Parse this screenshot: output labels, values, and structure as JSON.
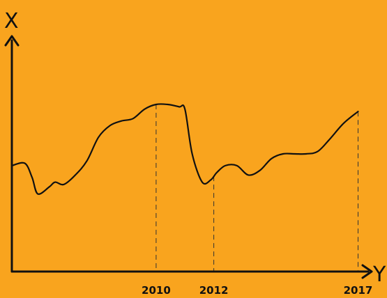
{
  "chart_data": {
    "type": "line",
    "title": "",
    "xlabel": "Y",
    "ylabel": "X",
    "xlim": [
      2005,
      2017.4
    ],
    "ylim": [
      0,
      100
    ],
    "grid": false,
    "tick_labels": [
      "2010",
      "2012",
      "2017"
    ],
    "ticks": [
      2010,
      2012,
      2017
    ],
    "colors": {
      "background": "#F9A41E",
      "line": "#111111",
      "guide": "#333333"
    },
    "series": [
      {
        "x": [
          2005.0,
          2005.45,
          2005.7,
          2005.9,
          2006.3,
          2006.5,
          2006.8,
          2007.2,
          2007.6,
          2008.0,
          2008.4,
          2008.8,
          2009.2,
          2009.6,
          2010.0,
          2010.4,
          2010.8,
          2011.0,
          2011.25,
          2011.6,
          2011.9,
          2012.1,
          2012.4,
          2012.8,
          2013.2,
          2013.6,
          2014.0,
          2014.4,
          2014.8,
          2015.2,
          2015.6,
          2016.0,
          2016.5,
          2017.0
        ],
        "values": [
          45,
          46,
          40,
          33,
          36,
          38,
          37,
          41,
          47,
          57,
          62,
          64,
          65,
          69,
          71,
          71,
          70,
          69,
          50,
          38,
          39,
          42,
          45,
          45,
          41,
          43,
          48,
          50,
          50,
          50,
          51,
          56,
          63,
          68
        ]
      }
    ]
  }
}
